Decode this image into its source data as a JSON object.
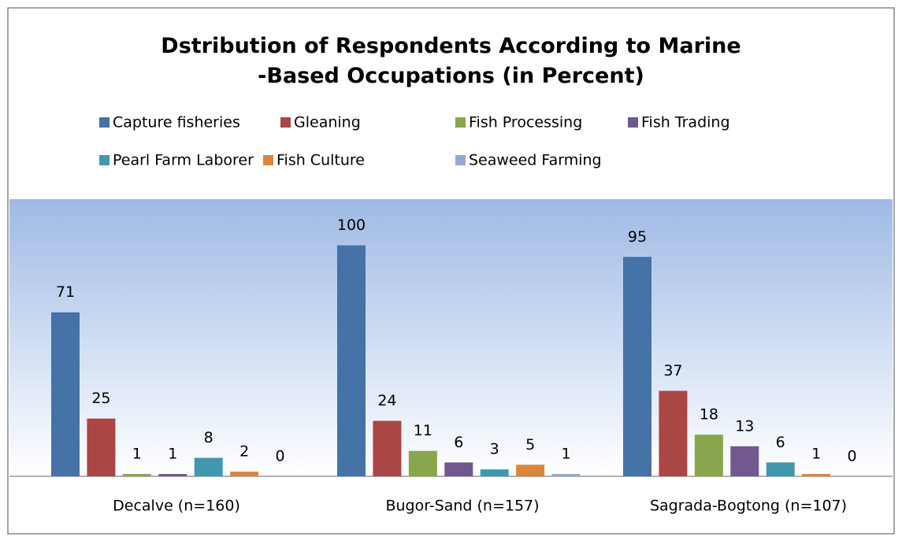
{
  "chart_data": {
    "type": "bar",
    "title": "Dstribution of Respondents According to Marine -Based Occupations (in Percent)",
    "categories": [
      "Decalve  (n=160)",
      "Bugor-Sand  (n=157)",
      "Sagrada-Bogtong (n=107)"
    ],
    "series": [
      {
        "name": "Capture fisheries",
        "color": "#4572a7",
        "values": [
          71,
          100,
          95
        ]
      },
      {
        "name": "Gleaning",
        "color": "#aa4643",
        "values": [
          25,
          24,
          37
        ]
      },
      {
        "name": "Fish Processing",
        "color": "#89a54e",
        "values": [
          1,
          11,
          18
        ]
      },
      {
        "name": "Fish Trading",
        "color": "#71588f",
        "values": [
          1,
          6,
          13
        ]
      },
      {
        "name": "Pearl Farm Laborer",
        "color": "#4198af",
        "values": [
          8,
          3,
          6
        ]
      },
      {
        "name": "Fish Culture",
        "color": "#db843d",
        "values": [
          2,
          5,
          1
        ]
      },
      {
        "name": "Seaweed Farming",
        "color": "#93a9cf",
        "values": [
          0,
          1,
          0
        ]
      }
    ],
    "ylim": [
      0,
      120
    ],
    "legend": "top"
  }
}
